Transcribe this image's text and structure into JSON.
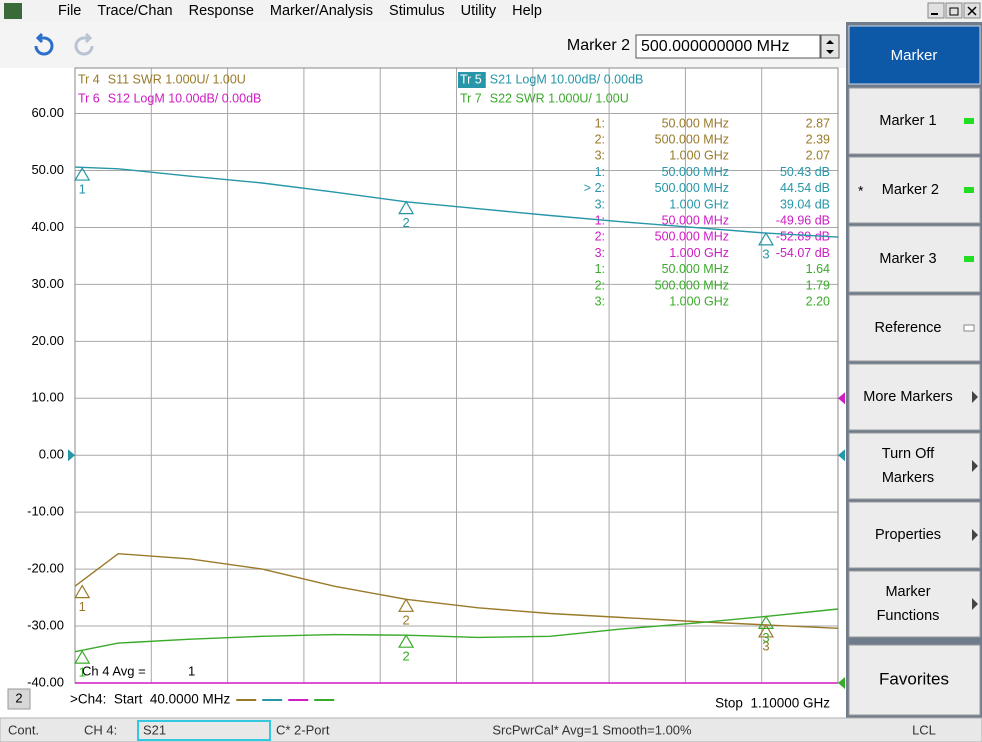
{
  "menu": {
    "items": [
      "File",
      "Trace/Chan",
      "Response",
      "Marker/Analysis",
      "Stimulus",
      "Utility",
      "Help"
    ]
  },
  "toolbar": {
    "label": "Marker 2",
    "input": "500.000000000 MHz"
  },
  "chart": {
    "type": "line",
    "trace_labels": [
      {
        "id": "Tr 4",
        "text": "S11 SWR 1.000U/ 1.00U",
        "color": "#9a7a2a"
      },
      {
        "id": "Tr 5",
        "text": "S21 LogM 10.00dB/ 0.00dB",
        "color": "#2696a8",
        "active": true
      },
      {
        "id": "Tr 6",
        "text": "S12 LogM 10.00dB/ 0.00dB",
        "color": "#d01cc4"
      },
      {
        "id": "Tr 7",
        "text": "S22 SWR 1.000U/ 1.00U",
        "color": "#3aaa2a"
      }
    ],
    "xlim": [
      40,
      1100
    ],
    "ylim": [
      -40,
      68
    ],
    "yticks": [
      {
        "value": 60,
        "label": "60.00"
      },
      {
        "value": 50,
        "label": "50.00"
      },
      {
        "value": 40,
        "label": "40.00"
      },
      {
        "value": 30,
        "label": "30.00"
      },
      {
        "value": 20,
        "label": "20.00"
      },
      {
        "value": 10,
        "label": "10.00"
      },
      {
        "value": 0,
        "label": "0.00"
      },
      {
        "value": -10,
        "label": "-10.00"
      },
      {
        "value": -20,
        "label": "-20.00"
      },
      {
        "value": -30,
        "label": "-30.00"
      },
      {
        "value": -40,
        "label": "-40.00"
      }
    ],
    "grid": true,
    "x": [
      40,
      100,
      200,
      300,
      400,
      500,
      600,
      700,
      800,
      900,
      1000,
      1100
    ],
    "series": [
      {
        "color": "#9a7a2a",
        "values": [
          -23.0,
          -17.3,
          -18.2,
          -20.0,
          -23.0,
          -25.3,
          -26.8,
          -27.8,
          -28.5,
          -29.2,
          -29.8,
          -30.4
        ],
        "markers": [
          {
            "x": 50,
            "y": -22.9,
            "label": "1"
          },
          {
            "x": 500,
            "y": -25.3,
            "label": "2"
          },
          {
            "x": 1000,
            "y": -29.8,
            "label": "3"
          }
        ]
      },
      {
        "color": "#2696a8",
        "values": [
          50.6,
          50.3,
          49.0,
          47.8,
          46.2,
          44.5,
          43.3,
          42.1,
          41.0,
          40.0,
          39.0,
          38.3
        ],
        "markers": [
          {
            "x": 50,
            "y": 50.43,
            "label": "1"
          },
          {
            "x": 500,
            "y": 44.54,
            "label": "2"
          },
          {
            "x": 1000,
            "y": 39.04,
            "label": "3"
          }
        ]
      },
      {
        "color": "#d01cc4",
        "values": [
          -40,
          -40,
          -40,
          -40,
          -40,
          -40,
          -40,
          -40,
          -40,
          -40,
          -40,
          -40
        ],
        "markers": []
      },
      {
        "color": "#3aaa2a",
        "values": [
          -34.5,
          -33.0,
          -32.3,
          -31.8,
          -31.5,
          -31.6,
          -32.0,
          -31.8,
          -30.5,
          -29.5,
          -28.3,
          -27.0
        ],
        "markers": [
          {
            "x": 50,
            "y": -34.4,
            "label": "1"
          },
          {
            "x": 500,
            "y": -31.6,
            "label": "2"
          },
          {
            "x": 1000,
            "y": -28.3,
            "label": "3"
          }
        ]
      }
    ],
    "marker_table": [
      {
        "color": "#9a7a2a",
        "rows": [
          [
            "1:",
            "50.000 MHz",
            "2.87"
          ],
          [
            "2:",
            "500.000 MHz",
            "2.39"
          ],
          [
            "3:",
            "1.000 GHz",
            "2.07"
          ]
        ]
      },
      {
        "color": "#2696a8",
        "rows": [
          [
            "1:",
            "50.000 MHz",
            "50.43 dB"
          ],
          [
            "> 2:",
            "500.000 MHz",
            "44.54 dB"
          ],
          [
            "3:",
            "1.000 GHz",
            "39.04 dB"
          ]
        ]
      },
      {
        "color": "#d01cc4",
        "rows": [
          [
            "1:",
            "50.000 MHz",
            "-49.96 dB"
          ],
          [
            "2:",
            "500.000 MHz",
            "-52.89 dB"
          ],
          [
            "3:",
            "1.000 GHz",
            "-54.07 dB"
          ]
        ]
      },
      {
        "color": "#3aaa2a",
        "rows": [
          [
            "1:",
            "50.000 MHz",
            "1.64"
          ],
          [
            "2:",
            "500.000 MHz",
            "1.79"
          ],
          [
            "3:",
            "1.000 GHz",
            "2.20"
          ]
        ]
      }
    ],
    "avg_label": "Ch 4 Avg =",
    "avg_value": "1",
    "window": "2",
    "start": ">Ch4:  Start  40.0000 MHz",
    "stop": "Stop  1.10000 GHz"
  },
  "side_panel": {
    "title": "Marker",
    "buttons": [
      {
        "lines": [
          "Marker 1"
        ],
        "indicator": "green"
      },
      {
        "prefix": "*",
        "lines": [
          "Marker 2"
        ],
        "indicator": "green"
      },
      {
        "lines": [
          "Marker 3"
        ],
        "indicator": "green"
      },
      {
        "lines": [
          "Reference"
        ],
        "indicator": "box"
      },
      {
        "lines": [
          "More Markers"
        ],
        "indicator": "arrow"
      },
      {
        "lines": [
          "Turn Off",
          "Markers"
        ],
        "indicator": "arrow"
      },
      {
        "lines": [
          "Properties"
        ],
        "indicator": "arrow"
      },
      {
        "lines": [
          "Marker",
          "Functions"
        ],
        "indicator": "arrow"
      },
      {
        "lines": [
          "Favorites"
        ]
      }
    ]
  },
  "status": {
    "mode": "Cont.",
    "channel": "CH 4:",
    "trace": "S21",
    "port": "C* 2-Port",
    "info": "SrcPwrCal* Avg=1 Smooth=1.00%",
    "remote": "LCL"
  }
}
